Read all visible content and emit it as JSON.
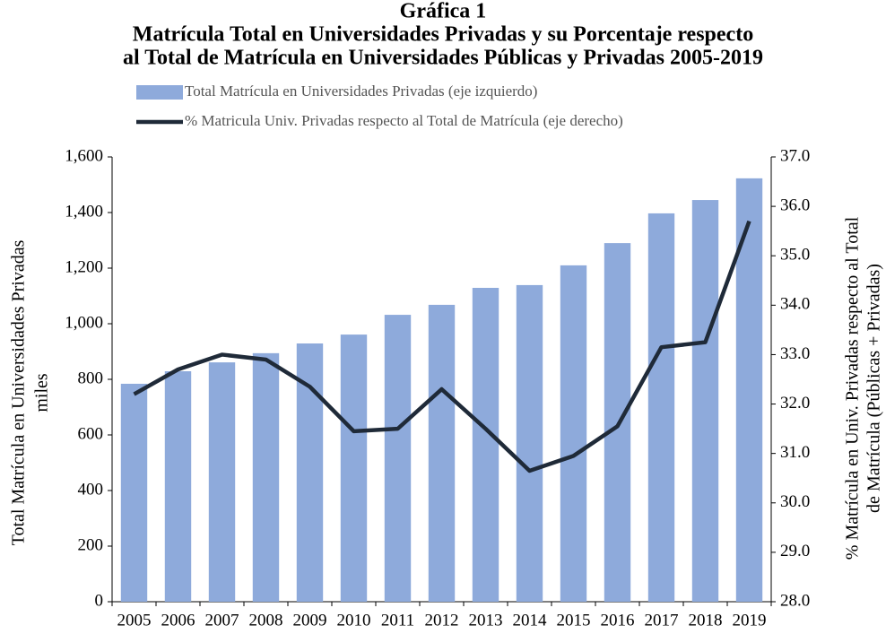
{
  "chart_data": {
    "type": "bar-line",
    "title": [
      "Gráfica 1",
      "Matrícula Total en Universidades Privadas y su Porcentaje respecto",
      "al Total de Matrícula en Universidades Públicas y Privadas 2005-2019"
    ],
    "categories": [
      "2005",
      "2006",
      "2007",
      "2008",
      "2009",
      "2010",
      "2011",
      "2012",
      "2013",
      "2014",
      "2015",
      "2016",
      "2017",
      "2018",
      "2019"
    ],
    "series": [
      {
        "name": "Total Matrícula en Universidades Privadas (eje izquierdo)",
        "type": "bar",
        "color": "#8eaadb",
        "values": [
          784,
          829,
          861,
          894,
          929,
          961,
          1032,
          1068,
          1129,
          1139,
          1210,
          1290,
          1397,
          1445,
          1523
        ]
      },
      {
        "name": "% Matricula Univ. Privadas respecto al Total de Matrícula (eje derecho)",
        "type": "line",
        "axis": "y2",
        "color": "#1f2a38",
        "values": [
          32.2,
          32.7,
          33.0,
          32.9,
          32.35,
          31.45,
          31.5,
          32.3,
          31.5,
          30.65,
          30.95,
          31.55,
          33.15,
          33.25,
          35.7
        ]
      }
    ],
    "ylabel": [
      "Total Matrícula en Universidades Privadas",
      "miles"
    ],
    "y2label": [
      "% Matrícula en Univ. Privadas respecto al Total",
      "de Matrícula (Públicas + Privadas)"
    ],
    "ylim": [
      0,
      1600
    ],
    "yticks": [
      0,
      200,
      400,
      600,
      800,
      {
        "value": 1000,
        "label": "1,000"
      },
      {
        "value": 1200,
        "label": "1,200"
      },
      {
        "value": 1400,
        "label": "1,400"
      },
      {
        "value": 1600,
        "label": "1,600"
      }
    ],
    "y2lim": [
      28,
      37
    ],
    "y2ticks": [
      {
        "value": 28,
        "label": "28.0"
      },
      {
        "value": 29,
        "label": "29.0"
      },
      {
        "value": 30,
        "label": "30.0"
      },
      {
        "value": 31,
        "label": "31.0"
      },
      {
        "value": 32,
        "label": "32.0"
      },
      {
        "value": 33,
        "label": "33.0"
      },
      {
        "value": 34,
        "label": "34.0"
      },
      {
        "value": 35,
        "label": "35.0"
      },
      {
        "value": 36,
        "label": "36.0"
      },
      {
        "value": 37,
        "label": "37.0"
      }
    ],
    "grid": false
  }
}
